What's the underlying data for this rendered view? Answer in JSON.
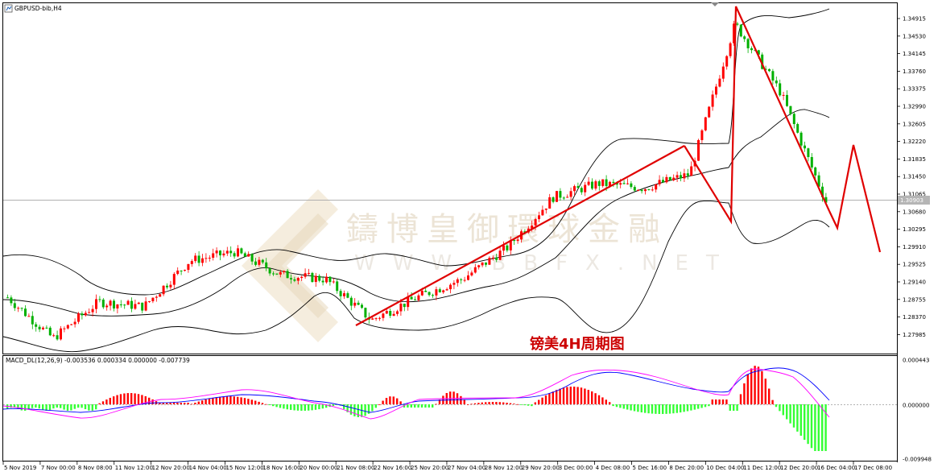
{
  "window": {
    "symbol_label": "GBPUSD-bib,H4"
  },
  "watermark": {
    "cn": "鑄博皇御環球金融",
    "latin": "WWW.BBFX.NET"
  },
  "caption": "镑美4H周期图",
  "macd": {
    "label": "MACD_DL(12,26,9) -0.003536 0.000334 0.000000 -0.007739",
    "right_axis": [
      "0.000443",
      "0.000000",
      "-0.009948"
    ]
  },
  "price_axis": {
    "ticks": [
      "1.34915",
      "1.34530",
      "1.34145",
      "1.33760",
      "1.33375",
      "1.32990",
      "1.32605",
      "1.32220",
      "1.31835",
      "1.31450",
      "1.31065",
      "1.30680",
      "1.30295",
      "1.29910",
      "1.29525",
      "1.29140",
      "1.28755",
      "1.28370",
      "1.27985"
    ],
    "current": "1.30903"
  },
  "time_axis": [
    "5 Nov 2019",
    "7 Nov 00:00",
    "8 Nov 08:00",
    "11 Nov 12:00",
    "12 Nov 20:00",
    "14 Nov 04:00",
    "15 Nov 12:00",
    "18 Nov 16:00",
    "20 Nov 00:00",
    "21 Nov 08:00",
    "22 Nov 16:00",
    "25 Nov 20:00",
    "27 Nov 04:00",
    "28 Nov 12:00",
    "29 Nov 20:00",
    "3 Dec 00:00",
    "4 Dec 08:00",
    "5 Dec 16:00",
    "8 Dec 20:00",
    "10 Dec 04:00",
    "11 Dec 12:00",
    "12 Dec 20:00",
    "16 Dec 04:00",
    "17 Dec 08:00"
  ],
  "chart_data": {
    "type": "candlestick",
    "title": "GBPUSD-bib,H4",
    "indicators": [
      "Bollinger Bands",
      "MACD_DL(12,26,9)"
    ],
    "ylim": [
      1.2775,
      1.351
    ],
    "approx_close_path": [
      {
        "x": "5 Nov 2019",
        "y": 1.288
      },
      {
        "x": "8 Nov 08:00",
        "y": 1.279
      },
      {
        "x": "11 Nov 12:00",
        "y": 1.287
      },
      {
        "x": "14 Nov 04:00",
        "y": 1.286
      },
      {
        "x": "15 Nov 12:00",
        "y": 1.296
      },
      {
        "x": "18 Nov 16:00",
        "y": 1.298
      },
      {
        "x": "20 Nov 00:00",
        "y": 1.293
      },
      {
        "x": "21 Nov 08:00",
        "y": 1.292
      },
      {
        "x": "22 Nov 16:00",
        "y": 1.283
      },
      {
        "x": "27 Nov 04:00",
        "y": 1.288
      },
      {
        "x": "29 Nov 20:00",
        "y": 1.292
      },
      {
        "x": "3 Dec 00:00",
        "y": 1.299
      },
      {
        "x": "4 Dec 08:00",
        "y": 1.31
      },
      {
        "x": "8 Dec 20:00",
        "y": 1.313
      },
      {
        "x": "10 Dec 04:00",
        "y": 1.312
      },
      {
        "x": "11 Dec 12:00",
        "y": 1.315
      },
      {
        "x": "12 Dec 20:00",
        "y": 1.348
      },
      {
        "x": "16 Dec 04:00",
        "y": 1.333
      },
      {
        "x": "17 Dec 08:00",
        "y": 1.309
      }
    ],
    "annotation_lines": [
      {
        "from": {
          "x": "22 Nov 16:00",
          "y": 1.283
        },
        "to": {
          "x": "10 Dec 04:00",
          "y": 1.322
        }
      },
      {
        "from": {
          "x": "10 Dec 04:00",
          "y": 1.322
        },
        "to": {
          "x": "11 Dec 12:00",
          "y": 1.3045
        }
      },
      {
        "from": {
          "x": "11 Dec 12:00",
          "y": 1.3045
        },
        "to": {
          "x": "12 Dec 20:00",
          "y": 1.3505
        }
      },
      {
        "from": {
          "x": "12 Dec 20:00",
          "y": 1.3505
        },
        "to": {
          "x": "17 Dec 08:00",
          "y": 1.3085
        }
      }
    ],
    "colors": {
      "up": "#ff0000",
      "down": "#00b000",
      "bands": "#000000",
      "annotation": "#ff0000",
      "macd_signal_a": "#0000ff",
      "macd_signal_b": "#ff00ff"
    }
  }
}
